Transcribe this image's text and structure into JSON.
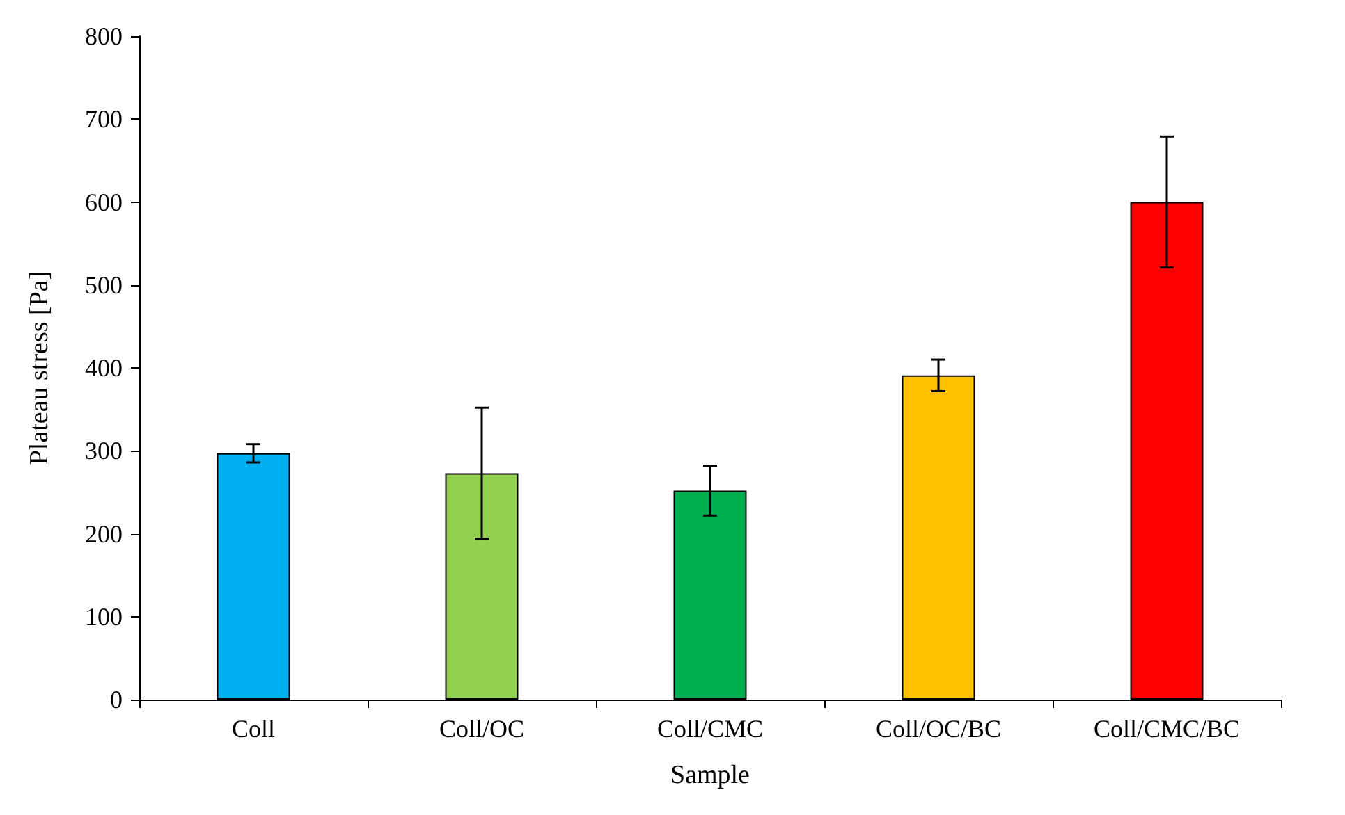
{
  "chart_data": {
    "type": "bar",
    "xlabel": "Sample",
    "ylabel": "Plateau stress [Pa]",
    "categories": [
      "Coll",
      "Coll/OC",
      "Coll/CMC",
      "Coll/OC/BC",
      "Coll/CMC/BC"
    ],
    "values": [
      297,
      273,
      252,
      391,
      600
    ],
    "errors": [
      11,
      79,
      30,
      19,
      79
    ],
    "colors": [
      "#00b0f0",
      "#92d050",
      "#00b050",
      "#ffc000",
      "#ff0000"
    ],
    "ylim": [
      0,
      800
    ],
    "yticks": [
      0,
      100,
      200,
      300,
      400,
      500,
      600,
      700,
      800
    ],
    "grid": false
  }
}
